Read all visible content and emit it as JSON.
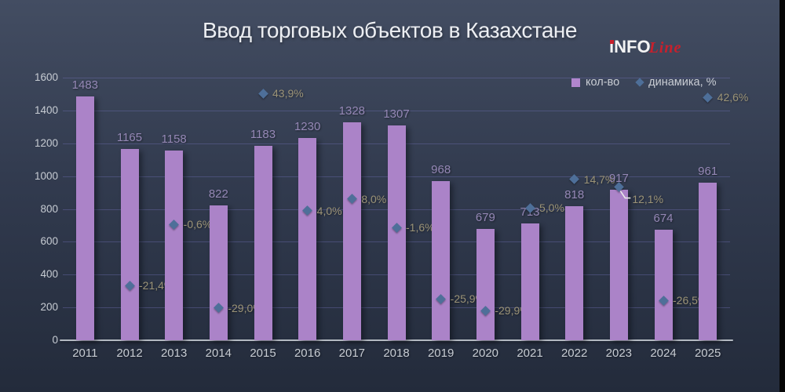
{
  "title": "Ввод торговых объектов в Казахстане",
  "logo": {
    "part_i": "i",
    "part_rest": "NFO",
    "part_accent": "Line"
  },
  "legend": {
    "items": [
      {
        "label": "кол-во",
        "marker": "square",
        "color": "#b186cd"
      },
      {
        "label": "динамика, %",
        "marker": "diamond",
        "color": "#4e6f99"
      }
    ]
  },
  "colors": {
    "background_top": "#434d62",
    "background_bottom": "#232b3b",
    "right_strip": "#060606",
    "bar": "#ab83c8",
    "bar_value_label": "#9588b6",
    "pct_label": "#9b9377",
    "diamond": "#4e6f99",
    "tick_text": "#c7ccd3",
    "gridline": "rgba(104,106,168,0.45)",
    "axis_line": "#b4bac2",
    "callout_line": "#e9e9e9",
    "logo_red": "#c8202c"
  },
  "chart_data": {
    "type": "bar",
    "title": "Ввод торговых объектов в Казахстане",
    "categories": [
      "2011",
      "2012",
      "2013",
      "2014",
      "2015",
      "2016",
      "2017",
      "2018",
      "2019",
      "2020",
      "2021",
      "2022",
      "2023",
      "2024",
      "2025"
    ],
    "series": [
      {
        "name": "кол-во",
        "type": "bar",
        "values": [
          1483,
          1165,
          1158,
          822,
          1183,
          1230,
          1328,
          1307,
          968,
          679,
          713,
          818,
          917,
          674,
          961
        ],
        "labels": [
          "1483",
          "1165",
          "1158",
          "822",
          "1183",
          "1230",
          "1328",
          "1307",
          "968",
          "679",
          "713",
          "818",
          "917",
          "674",
          "961"
        ]
      },
      {
        "name": "динамика, %",
        "type": "scatter",
        "values": [
          null,
          -21.4,
          -0.6,
          -29.0,
          43.9,
          4.0,
          8.0,
          -1.6,
          -25.9,
          -29.9,
          5.0,
          14.7,
          12.1,
          -26.5,
          42.6
        ],
        "labels": [
          "",
          "-21,4%",
          "-0,6%",
          "-29,0%",
          "43,9%",
          "4,0%",
          "8,0%",
          "-1,6%",
          "-25,9%",
          "-29,9%",
          "5,0%",
          "14,7%",
          "12,1%",
          "-26,5%",
          "42,6%"
        ],
        "callout_index": 12
      }
    ],
    "y_axis": {
      "min": 0,
      "max": 1600,
      "step": 200,
      "ticks": [
        "0",
        "200",
        "400",
        "600",
        "800",
        "1000",
        "1200",
        "1400",
        "1600"
      ]
    },
    "secondary_axis_visible": false,
    "legend_position": "top-right",
    "grid": true,
    "xlabel": "",
    "ylabel": ""
  }
}
